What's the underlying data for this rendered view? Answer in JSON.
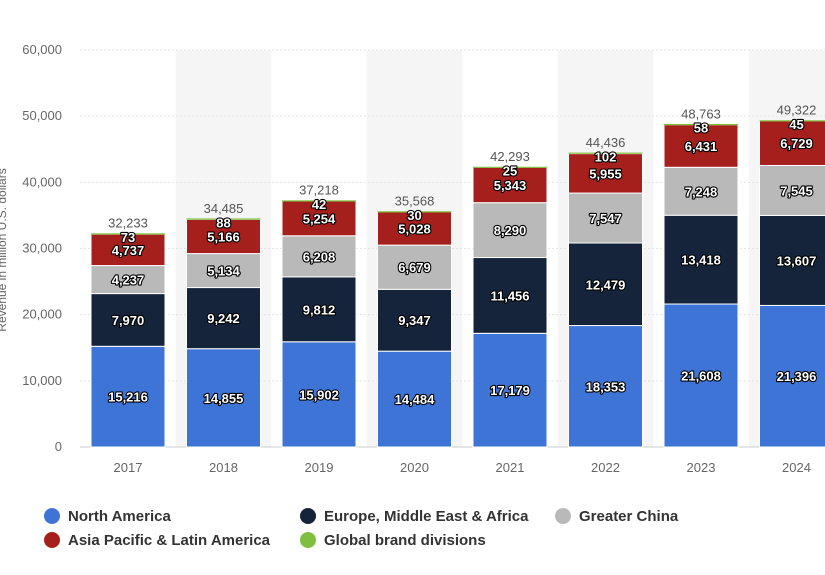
{
  "chart_data": {
    "type": "bar",
    "stacked": true,
    "categories": [
      "2017",
      "2018",
      "2019",
      "2020",
      "2021",
      "2022",
      "2023",
      "2024"
    ],
    "ylabel": "Revenue in million U.S. dollars",
    "ylim": [
      0,
      60000
    ],
    "yticks": [
      0,
      10000,
      20000,
      30000,
      40000,
      50000,
      60000
    ],
    "ytick_labels": [
      "0",
      "10,000",
      "20,000",
      "30,000",
      "40,000",
      "50,000",
      "60,000"
    ],
    "grid": true,
    "legend_position": "bottom",
    "totals": [
      32233,
      34485,
      37218,
      35568,
      42293,
      44436,
      48763,
      49322
    ],
    "total_labels": [
      "32,233",
      "34,485",
      "37,218",
      "35,568",
      "42,293",
      "44,436",
      "48,763",
      "49,322"
    ],
    "series": [
      {
        "name": "North America",
        "color": "#3e74d6",
        "values": [
          15216,
          14855,
          15902,
          14484,
          17179,
          18353,
          21608,
          21396
        ],
        "labels": [
          "15,216",
          "14,855",
          "15,902",
          "14,484",
          "17,179",
          "18,353",
          "21,608",
          "21,396"
        ]
      },
      {
        "name": "Europe, Middle East & Africa",
        "color": "#15243b",
        "values": [
          7970,
          9242,
          9812,
          9347,
          11456,
          12479,
          13418,
          13607
        ],
        "labels": [
          "7,970",
          "9,242",
          "9,812",
          "9,347",
          "11,456",
          "12,479",
          "13,418",
          "13,607"
        ]
      },
      {
        "name": "Greater China",
        "color": "#b9b9b9",
        "values": [
          4237,
          5134,
          6208,
          6679,
          8290,
          7547,
          7248,
          7545
        ],
        "labels": [
          "4,237",
          "5,134",
          "6,208",
          "6,679",
          "8,290",
          "7,547",
          "7,248",
          "7,545"
        ]
      },
      {
        "name": "Asia Pacific & Latin America",
        "color": "#a51f1c",
        "values": [
          4737,
          5166,
          5254,
          5028,
          5343,
          5955,
          6431,
          6729
        ],
        "labels": [
          "4,737",
          "5,166",
          "5,254",
          "5,028",
          "5,343",
          "5,955",
          "6,431",
          "6,729"
        ]
      },
      {
        "name": "Global brand divisions",
        "color": "#7fbf3f",
        "values": [
          73,
          88,
          42,
          30,
          25,
          102,
          58,
          45
        ],
        "labels": [
          "73",
          "88",
          "42",
          "30",
          "25",
          "102",
          "58",
          "45"
        ]
      }
    ]
  }
}
